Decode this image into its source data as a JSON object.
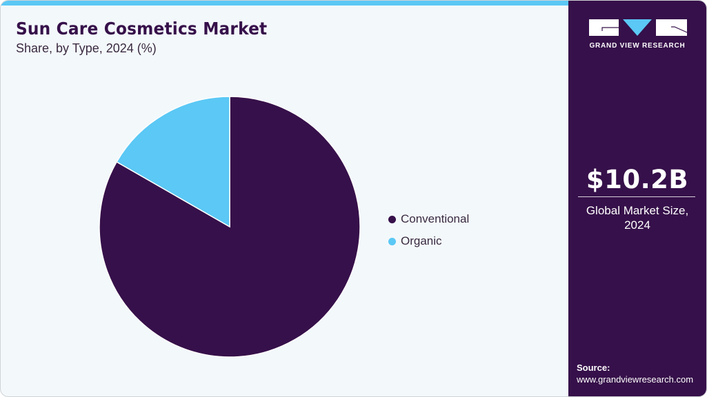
{
  "header": {
    "title": "Sun Care Cosmetics Market",
    "subtitle": "Share, by Type, 2024 (%)"
  },
  "colors": {
    "accent_bar": "#5bc8f5",
    "conventional": "#36104a",
    "organic": "#5bc8f5",
    "sidebar_bg": "#36104a",
    "panel_bg": "#f3f8fb"
  },
  "legend": {
    "items": [
      {
        "label": "Conventional",
        "color": "#36104a"
      },
      {
        "label": "Organic",
        "color": "#5bc8f5"
      }
    ]
  },
  "sidebar": {
    "brand": "GRAND VIEW RESEARCH",
    "market_value": "$10.2B",
    "market_label_line1": "Global Market Size,",
    "market_label_line2": "2024",
    "source_label": "Source:",
    "source_url": "www.grandviewresearch.com"
  },
  "chart_data": {
    "type": "pie",
    "title": "Sun Care Cosmetics Market",
    "subtitle": "Share, by Type, 2024 (%)",
    "categories": [
      "Conventional",
      "Organic"
    ],
    "values": [
      83.3,
      16.7
    ],
    "colors": [
      "#36104a",
      "#5bc8f5"
    ],
    "start_angle": "12 o'clock, Conventional clockwise",
    "legend_position": "right",
    "annotations": [
      "$10.2B Global Market Size, 2024"
    ]
  }
}
